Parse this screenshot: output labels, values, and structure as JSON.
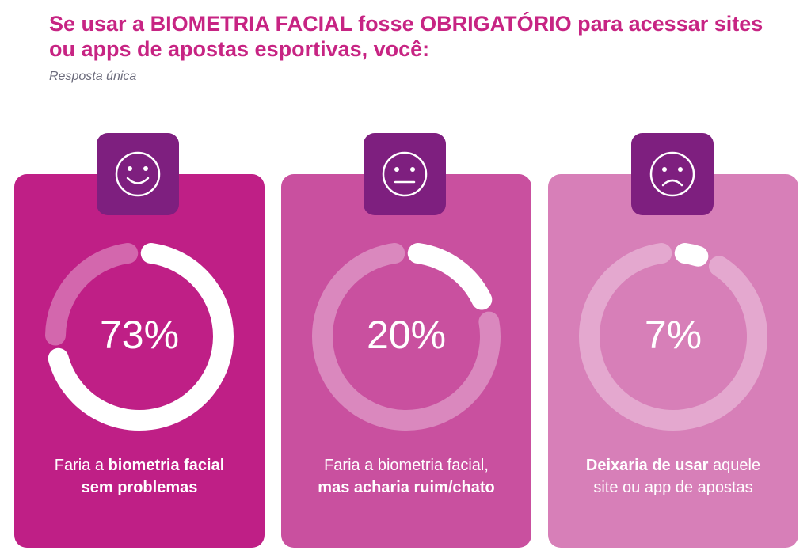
{
  "title": "Se usar a BIOMETRIA FACIAL fosse OBRIGATÓRIO para acessar sites ou apps de apostas esportivas, você:",
  "subtitle": "Resposta única",
  "chart_data": {
    "type": "pie",
    "categories": [
      "Faria a biometria facial sem problemas",
      "Faria a biometria facial, mas acharia ruim/chato",
      "Deixaria de usar aquele site ou app de apostas"
    ],
    "values": [
      73,
      20,
      7
    ],
    "unit": "%"
  },
  "cards": [
    {
      "icon": "smiley-face-icon",
      "percent_label": "73%",
      "value": 73,
      "color": "#bf1f86",
      "desc": [
        [
          {
            "text": "Faria a ",
            "bold": false
          },
          {
            "text": "biometria facial",
            "bold": true
          }
        ],
        [
          {
            "text": "sem problemas",
            "bold": true
          }
        ]
      ]
    },
    {
      "icon": "neutral-face-icon",
      "percent_label": "20%",
      "value": 20,
      "color": "#c9509f",
      "desc": [
        [
          {
            "text": "Faria a biometria facial,",
            "bold": false
          }
        ],
        [
          {
            "text": "mas acharia ruim/chato",
            "bold": true
          }
        ]
      ]
    },
    {
      "icon": "sad-face-icon",
      "percent_label": "7%",
      "value": 7,
      "color": "#d77fb8",
      "desc": [
        [
          {
            "text": "Deixaria de usar",
            "bold": true
          },
          {
            "text": " aquele",
            "bold": false
          }
        ],
        [
          {
            "text": "site ou app de apostas",
            "bold": false
          }
        ]
      ]
    }
  ],
  "colors": {
    "title": "#c72483",
    "icon_box": "#7e1f7f",
    "ring_fill": "#ffffff"
  }
}
